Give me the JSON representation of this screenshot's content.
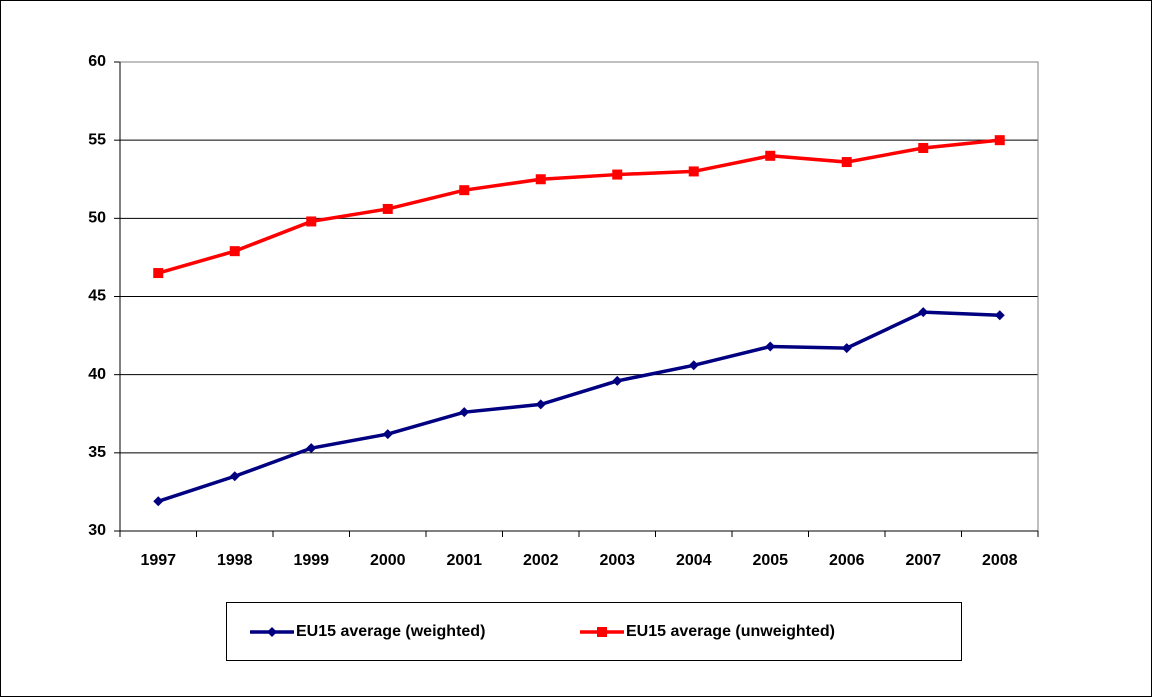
{
  "chart_data": {
    "type": "line",
    "categories": [
      "1997",
      "1998",
      "1999",
      "2000",
      "2001",
      "2002",
      "2003",
      "2004",
      "2005",
      "2006",
      "2007",
      "2008"
    ],
    "series": [
      {
        "name": "EU15 average (weighted)",
        "color": "#000080",
        "marker": "diamond",
        "values": [
          31.9,
          33.5,
          35.3,
          36.2,
          37.6,
          38.1,
          39.6,
          40.6,
          41.8,
          41.7,
          44.0,
          43.8
        ]
      },
      {
        "name": "EU15 average (unweighted)",
        "color": "#ff0000",
        "marker": "square",
        "values": [
          46.5,
          47.9,
          49.8,
          50.6,
          51.8,
          52.5,
          52.8,
          53.0,
          54.0,
          53.6,
          54.5,
          55.0
        ]
      }
    ],
    "ylim": [
      30,
      60
    ],
    "yticks": [
      30,
      35,
      40,
      45,
      50,
      55,
      60
    ],
    "grid": true,
    "legend": "bottom"
  }
}
